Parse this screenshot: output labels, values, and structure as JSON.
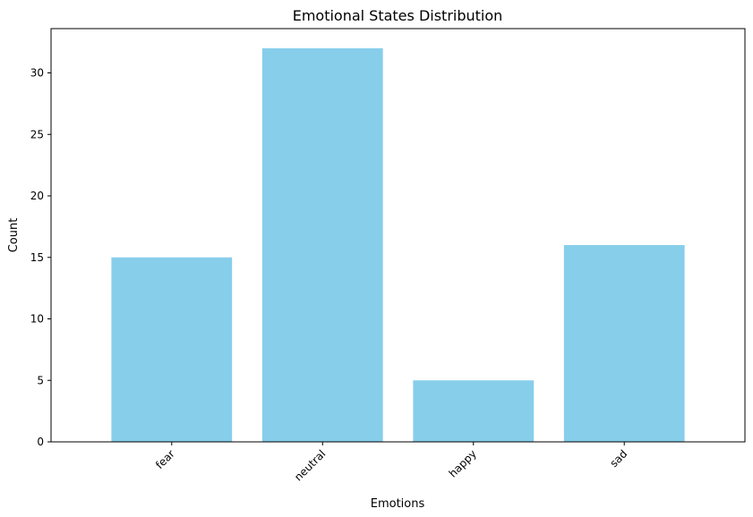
{
  "chart_data": {
    "type": "bar",
    "title": "Emotional States Distribution",
    "xlabel": "Emotions",
    "ylabel": "Count",
    "categories": [
      "fear",
      "neutral",
      "happy",
      "sad"
    ],
    "values": [
      15,
      32,
      5,
      16
    ],
    "ylim": [
      0,
      33.6
    ],
    "yticks": [
      0,
      5,
      10,
      15,
      20,
      25,
      30
    ],
    "ytick_labels": [
      "0",
      "5",
      "10",
      "15",
      "20",
      "25",
      "30"
    ],
    "xtick_rotation_deg": 45,
    "bar_color": "#87ceeb",
    "grid": false,
    "legend": "none"
  }
}
